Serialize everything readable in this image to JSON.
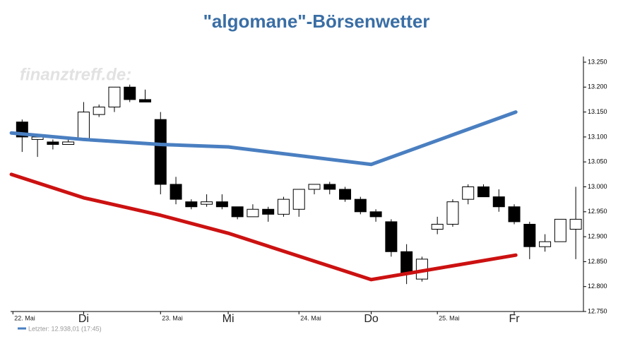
{
  "chart_data": {
    "type": "candlestick",
    "title": "\"algomane\"-Börsenwetter",
    "watermark": "finanztreff.de:",
    "legend_text": "Letzter: 12.938,01 (17:45)",
    "xlim": [
      -0.75,
      36.5
    ],
    "xticks": [
      {
        "value": -0.6,
        "label": "22. Mai"
      },
      {
        "value": 4,
        "label": "Di"
      },
      {
        "value": 9,
        "label": "23. Mai"
      },
      {
        "value": 13.4,
        "label": "Mi"
      },
      {
        "value": 18,
        "label": "24. Mai"
      },
      {
        "value": 22.7,
        "label": "Do"
      },
      {
        "value": 27,
        "label": "25. Mai"
      },
      {
        "value": 32,
        "label": "Fr"
      }
    ],
    "ylim": [
      12750,
      13250
    ],
    "yticks": [
      {
        "value": 12750,
        "label": "12.750"
      },
      {
        "value": 12800,
        "label": "12.800"
      },
      {
        "value": 12850,
        "label": "12.850"
      },
      {
        "value": 12900,
        "label": "12.900"
      },
      {
        "value": 12950,
        "label": "12.950"
      },
      {
        "value": 13000,
        "label": "13.000"
      },
      {
        "value": 13050,
        "label": "13.050"
      },
      {
        "value": 13100,
        "label": "13.100"
      },
      {
        "value": 13150,
        "label": "13.150"
      },
      {
        "value": 13200,
        "label": "13.200"
      },
      {
        "value": 13250,
        "label": "13.250"
      }
    ],
    "up_color": "#ffffff",
    "down_color": "#000000",
    "candles": {
      "x": [
        0,
        1,
        2,
        3,
        4,
        5,
        6,
        7,
        8,
        9,
        10,
        11,
        12,
        13,
        14,
        15,
        16,
        17,
        18,
        19,
        20,
        21,
        22,
        23,
        24,
        25,
        26,
        27,
        28,
        29,
        30,
        31,
        32,
        33,
        34,
        35,
        36
      ],
      "open": [
        13130,
        13095,
        13090,
        13085,
        13095,
        13145,
        13160,
        13200,
        13175,
        13135,
        13005,
        12970,
        12965,
        12970,
        12960,
        12940,
        12955,
        12945,
        12955,
        12995,
        13005,
        12995,
        12975,
        12950,
        12930,
        12870,
        12815,
        12915,
        12925,
        12975,
        13000,
        12980,
        12960,
        12925,
        12880,
        12890,
        12915
      ],
      "high": [
        13135,
        13105,
        13095,
        13100,
        13170,
        13165,
        13200,
        13205,
        13195,
        13150,
        13020,
        12975,
        12985,
        12985,
        12960,
        12965,
        12960,
        12980,
        12995,
        13005,
        13010,
        13000,
        12980,
        12955,
        12935,
        12885,
        12860,
        12940,
        12975,
        13005,
        13005,
        12995,
        12965,
        12930,
        12905,
        12935,
        13000
      ],
      "low": [
        13070,
        13060,
        13075,
        13085,
        13095,
        13140,
        13150,
        13170,
        13170,
        12985,
        12965,
        12955,
        12960,
        12955,
        12935,
        12940,
        12930,
        12940,
        12940,
        12985,
        12985,
        12970,
        12945,
        12930,
        12860,
        12805,
        12810,
        12905,
        12920,
        12965,
        12980,
        12950,
        12925,
        12855,
        12870,
        12890,
        12855
      ],
      "close": [
        13100,
        13100,
        13085,
        13090,
        13150,
        13160,
        13200,
        13175,
        13170,
        13005,
        12975,
        12960,
        12970,
        12960,
        12940,
        12955,
        12945,
        12975,
        12995,
        13005,
        12995,
        12975,
        12950,
        12940,
        12870,
        12825,
        12855,
        12925,
        12970,
        13000,
        12980,
        12960,
        12930,
        12880,
        12890,
        12935,
        12935
      ]
    },
    "series": [
      {
        "color": "#4a7fc1",
        "x": [
          -0.7,
          4,
          9,
          13.4,
          22.7,
          32.1
        ],
        "values": [
          13108,
          13095,
          13085,
          13080,
          13045,
          13150
        ]
      },
      {
        "color": "#cc1111",
        "x": [
          -0.7,
          4,
          9,
          13.4,
          22.7,
          32.1
        ],
        "values": [
          13025,
          12978,
          12943,
          12907,
          12814,
          12863
        ]
      }
    ]
  }
}
